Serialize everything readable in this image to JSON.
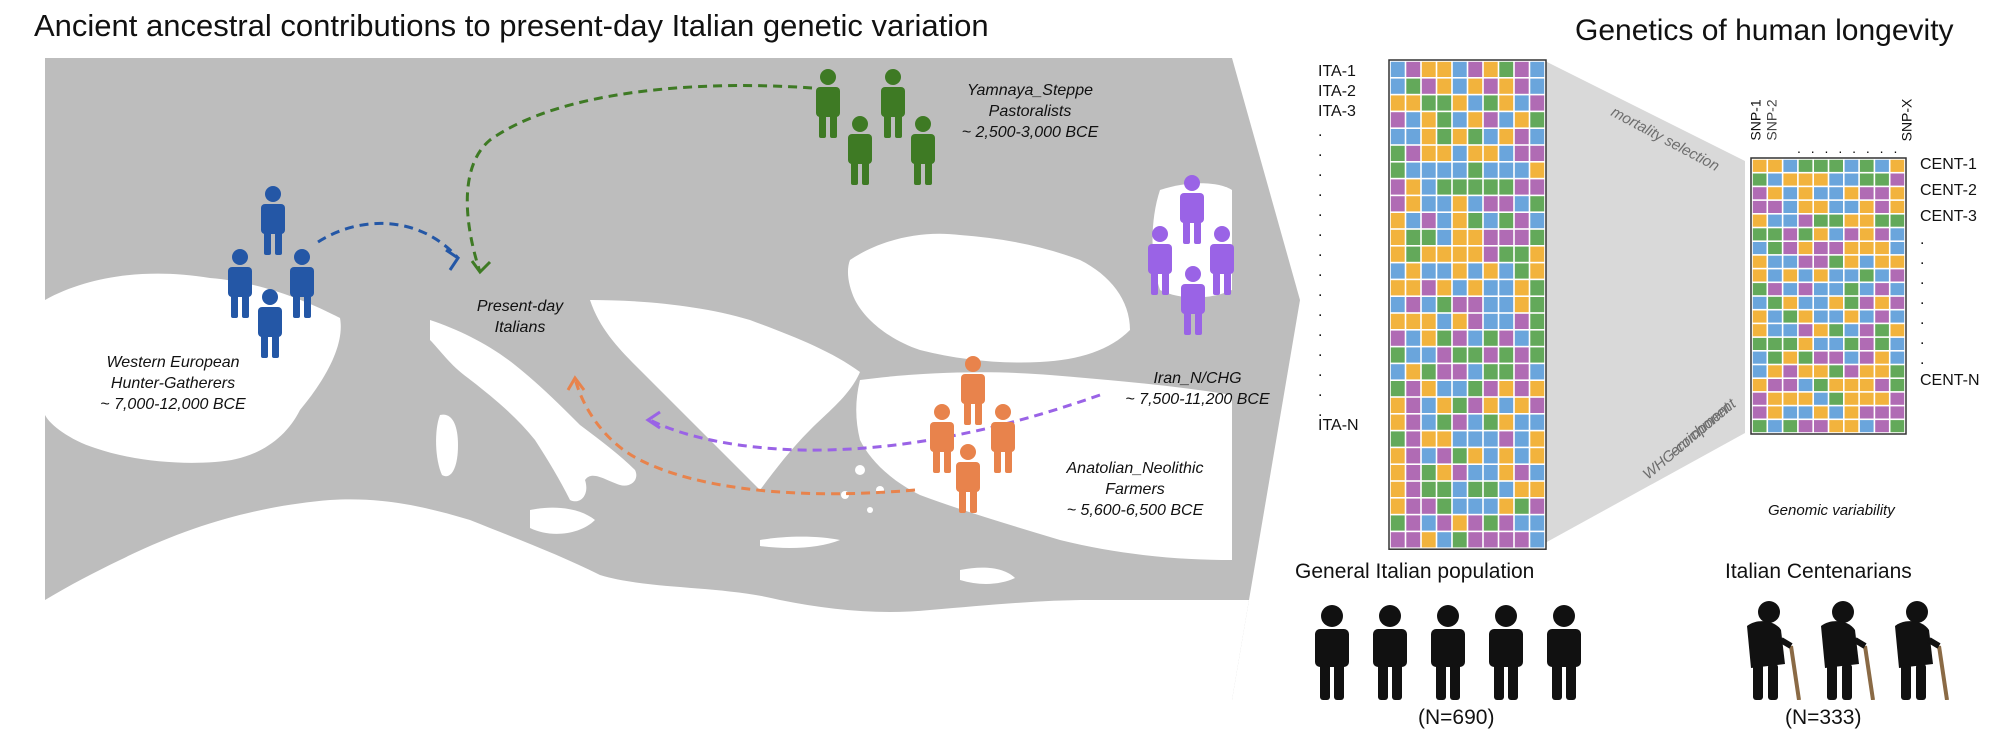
{
  "left": {
    "title": "Ancient ancestral contributions to present-day Italian genetic variation",
    "labels": {
      "whg_line1": "Western European",
      "whg_line2": "Hunter-Gatherers",
      "whg_date": "~ 7,000-12,000 BCE",
      "present_line1": "Present-day",
      "present_line2": "Italians",
      "yamnaya_line1": "Yamnaya_Steppe",
      "yamnaya_line2": "Pastoralists",
      "yamnaya_date": "~ 2,500-3,000 BCE",
      "iran_line1": "Iran_N/CHG",
      "iran_date": "~ 7,500-11,200 BCE",
      "anatolian_line1": "Anatolian_Neolithic",
      "anatolian_line2": "Farmers",
      "anatolian_date": "~ 5,600-6,500 BCE"
    },
    "colors": {
      "whg": "#2457a6",
      "yamnaya": "#3e7a24",
      "iran": "#9a63e6",
      "anatolian": "#e8834c",
      "sea": "#bdbdbd",
      "land": "#ffffff"
    }
  },
  "right": {
    "title": "Genetics of human longevity",
    "ita_rows": [
      "ITA-1",
      "ITA-2",
      "ITA-3",
      ".",
      ".",
      ".",
      ".",
      ".",
      ".",
      ".",
      ".",
      ".",
      ".",
      ".",
      ".",
      ".",
      ".",
      ".",
      "ITA-N"
    ],
    "cent_rows": [
      "CENT-1",
      "CENT-2",
      "CENT-3",
      ".",
      ".",
      ".",
      ".",
      ".",
      ".",
      ".",
      "CENT-N"
    ],
    "snp_labels": [
      "SNP-1",
      "SNP-2",
      ". . . . . . . .",
      "SNP-X"
    ],
    "funnel_label_top": "mortality selection",
    "funnel_label_bottom_line1": "WHG-component",
    "funnel_label_bottom_line2": "enrichment",
    "genomic_variability": "Genomic variability",
    "group1_name": "General Italian population",
    "group1_n": "(N=690)",
    "group2_name": "Italian Centenarians",
    "group2_n": "(N=333)",
    "cell_colors": [
      "#f2b33d",
      "#6aa5dc",
      "#b06bb4",
      "#63a95a"
    ]
  }
}
